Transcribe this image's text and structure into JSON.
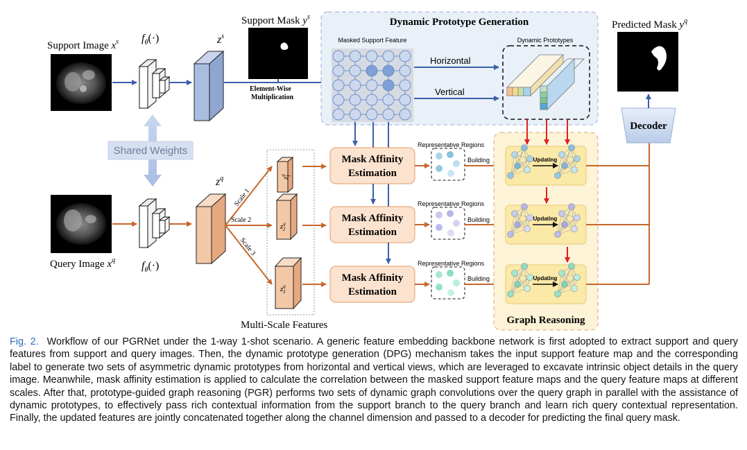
{
  "diagram": {
    "support_image_label": "Support Image",
    "support_image_var": "x",
    "support_image_sup": "s",
    "query_image_label": "Query Image",
    "query_image_var": "x",
    "query_image_sup": "q",
    "encoder_label": "f",
    "encoder_sub": "θ",
    "encoder_args": "(·)",
    "support_feature_var": "z",
    "support_feature_sup": "s",
    "query_feature_var": "z",
    "query_feature_sup": "q",
    "support_mask_label": "Support Mask",
    "support_mask_var": "y",
    "support_mask_sup": "s",
    "shared_weights": "Shared Weights",
    "elementwise_line1": "Element-Wise",
    "elementwise_line2": "Multiplication",
    "dpg_title": "Dynamic Prototype Generation",
    "masked_support_feature": "Masked Support Feature",
    "dynamic_prototypes": "Dynamic Prototypes",
    "horizontal": "Horizontal",
    "vertical": "Vertical",
    "predicted_mask_label": "Predicted Mask",
    "predicted_mask_var": "y",
    "predicted_mask_sup": "q",
    "decoder": "Decoder",
    "scale_labels": [
      "Scale 1",
      "Scale 2",
      "Scale 3"
    ],
    "scale_feature_subs": [
      "1",
      "2",
      "3"
    ],
    "multiscale_label": "Multi-Scale Features",
    "mae_line1": "Mask Affinity",
    "mae_line2": "Estimation",
    "representative_regions": "Representative Regions",
    "building": "Building",
    "updating": "Updating",
    "graph_reasoning": "Graph Reasoning"
  },
  "caption": {
    "fig_number": "Fig. 2.",
    "text": "Workflow of our PGRNet under the 1-way 1-shot scenario. A generic feature embedding backbone network is first adopted to extract support and query features from support and query images. Then, the dynamic prototype generation (DPG) mechanism takes the input support feature map and the corresponding label to generate two sets of asymmetric dynamic prototypes from horizontal and vertical views, which are leveraged to excavate intrinsic object details in the query image. Meanwhile, mask affinity estimation is applied to calculate the correlation between the masked support feature maps and the query feature maps at different scales. After that, prototype-guided graph reasoning (PGR) performs two sets of dynamic graph convolutions over the query graph in parallel with the assistance of dynamic prototypes, to effectively pass rich contextual information from the support branch to the query branch and learn rich query contextual representation. Finally, the updated features are jointly concatenated together along the channel dimension and passed to a decoder for predicting the final query mask."
  },
  "colors": {
    "blue_arrow": "#3a5ea8",
    "orange_arrow": "#c7662a",
    "red_arrow": "#e02020",
    "support_feature": "#a9bde0",
    "query_feature": "#f3c8a6",
    "dpg_box": "#e9f0f8",
    "graph_box": "#fdf3d6",
    "mae_box": "#fce3cf"
  }
}
